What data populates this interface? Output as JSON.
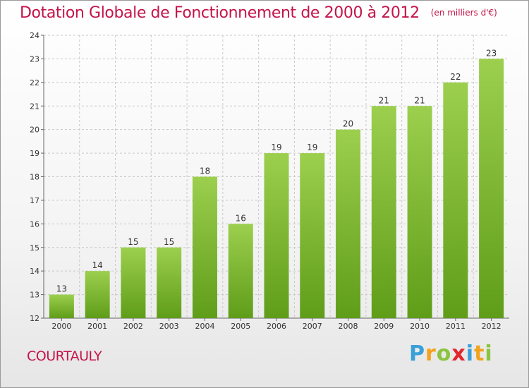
{
  "header": {
    "title": "Dotation Globale de Fonctionnement de 2000 à 2012",
    "unit": "(en milliers d'€)"
  },
  "footer": {
    "commune": "COURTAULY",
    "brand_letters": [
      "P",
      "r",
      "o",
      "x",
      "i",
      "t",
      "i"
    ]
  },
  "colors": {
    "title": "#c4144a",
    "bar_top": "#9ccf4e",
    "bar_bottom": "#5f9d19",
    "grid": "#c8c8c8"
  },
  "chart_data": {
    "type": "bar",
    "title": "Dotation Globale de Fonctionnement de 2000 à 2012",
    "subtitle": "(en milliers d'€)",
    "categories": [
      "2000",
      "2001",
      "2002",
      "2003",
      "2004",
      "2005",
      "2006",
      "2007",
      "2008",
      "2009",
      "2010",
      "2011",
      "2012"
    ],
    "values": [
      13,
      14,
      15,
      15,
      18,
      16,
      19,
      19,
      20,
      21,
      21,
      22,
      23
    ],
    "ylim": [
      12,
      24
    ],
    "yticks": [
      12,
      13,
      14,
      15,
      16,
      17,
      18,
      19,
      20,
      21,
      22,
      23,
      24
    ],
    "grid": true,
    "xlabel": "",
    "ylabel": ""
  }
}
